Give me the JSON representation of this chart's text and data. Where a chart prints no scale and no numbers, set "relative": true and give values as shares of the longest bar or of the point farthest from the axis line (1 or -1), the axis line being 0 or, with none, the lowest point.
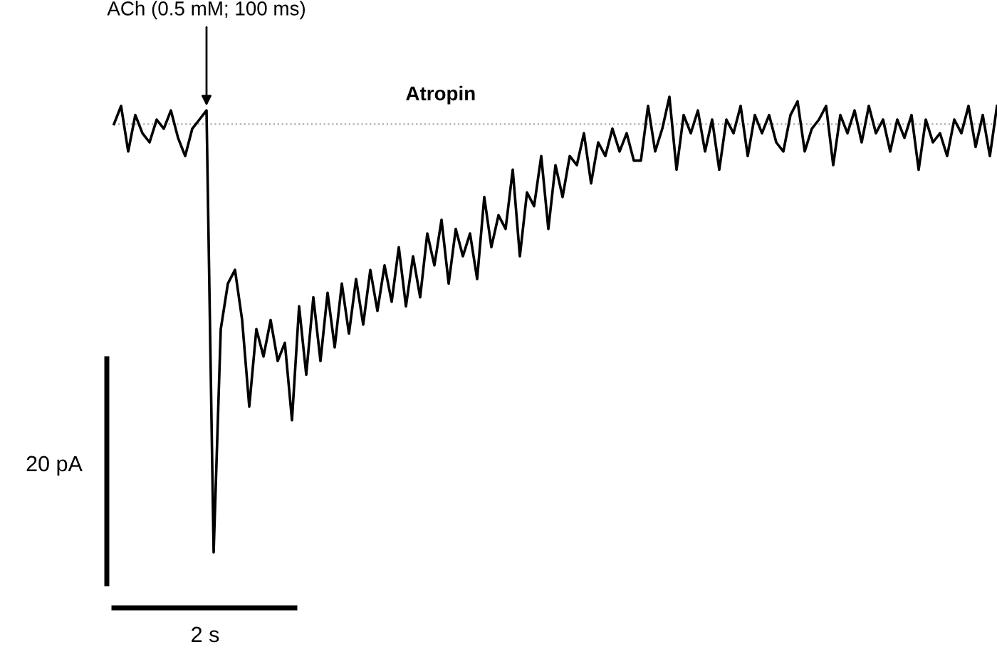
{
  "chart_data": {
    "type": "line",
    "relative": true,
    "color": "#000000",
    "categories": [
      null,
      null,
      null,
      null,
      null,
      null,
      null,
      null,
      null,
      null,
      null,
      null,
      null,
      null,
      null,
      null,
      null,
      null,
      null,
      null,
      null,
      null,
      null,
      null,
      null,
      null,
      null,
      null,
      null,
      null,
      null,
      null,
      null,
      null,
      null,
      null,
      null,
      null,
      null,
      null,
      null,
      null,
      null,
      null,
      null,
      null,
      null,
      null,
      null,
      null,
      null,
      null,
      null,
      null,
      null,
      null,
      null,
      null,
      null,
      null,
      null,
      null,
      null,
      null,
      null,
      null,
      null,
      null,
      null,
      null,
      null,
      null,
      null,
      null,
      null,
      null,
      null,
      null,
      null,
      null,
      null,
      null,
      null,
      null,
      null,
      null,
      null,
      null,
      null,
      null,
      null,
      null,
      null,
      null,
      null,
      null,
      null,
      null,
      null,
      null,
      null,
      null,
      null,
      null,
      null,
      null,
      null,
      null,
      null,
      null,
      null,
      null,
      null,
      null,
      null,
      null,
      null,
      null,
      null,
      null,
      null,
      null,
      null,
      null,
      null
    ],
    "values": [
      0.94,
      0.98,
      0.88,
      0.96,
      0.92,
      0.9,
      0.95,
      0.93,
      0.97,
      0.91,
      0.87,
      0.93,
      0.95,
      0.97,
      0.0,
      0.49,
      0.59,
      0.62,
      0.51,
      0.32,
      0.49,
      0.43,
      0.51,
      0.42,
      0.46,
      0.29,
      0.54,
      0.39,
      0.56,
      0.42,
      0.57,
      0.45,
      0.59,
      0.48,
      0.6,
      0.5,
      0.62,
      0.53,
      0.63,
      0.55,
      0.67,
      0.54,
      0.65,
      0.56,
      0.7,
      0.63,
      0.73,
      0.59,
      0.71,
      0.65,
      0.7,
      0.6,
      0.78,
      0.67,
      0.74,
      0.71,
      0.84,
      0.65,
      0.79,
      0.76,
      0.87,
      0.71,
      0.85,
      0.78,
      0.87,
      0.85,
      0.92,
      0.81,
      0.9,
      0.87,
      0.93,
      0.88,
      0.92,
      0.86,
      0.86,
      0.98,
      0.88,
      0.93,
      1.0,
      0.84,
      0.96,
      0.92,
      0.97,
      0.88,
      0.95,
      0.84,
      0.95,
      0.92,
      0.98,
      0.87,
      0.96,
      0.92,
      0.96,
      0.9,
      0.88,
      0.96,
      0.99,
      0.88,
      0.93,
      0.95,
      0.98,
      0.85,
      0.96,
      0.92,
      0.97,
      0.9,
      0.98,
      0.92,
      0.95,
      0.88,
      0.95,
      0.91,
      0.96,
      0.84,
      0.95,
      0.9,
      0.92,
      0.87,
      0.95,
      0.92,
      0.98,
      0.89,
      0.96,
      0.87,
      0.98
    ],
    "ref_lines": [
      {
        "axis": "y",
        "value": 0.94,
        "label": "Atropin",
        "color": "#aaaaaa",
        "line_style": "dotted"
      }
    ],
    "annotations": [
      "ACh (0.5 mM; 100 ms)",
      "20 pA",
      "2 s"
    ],
    "grid": false,
    "legend": false,
    "tick_labels": false
  }
}
